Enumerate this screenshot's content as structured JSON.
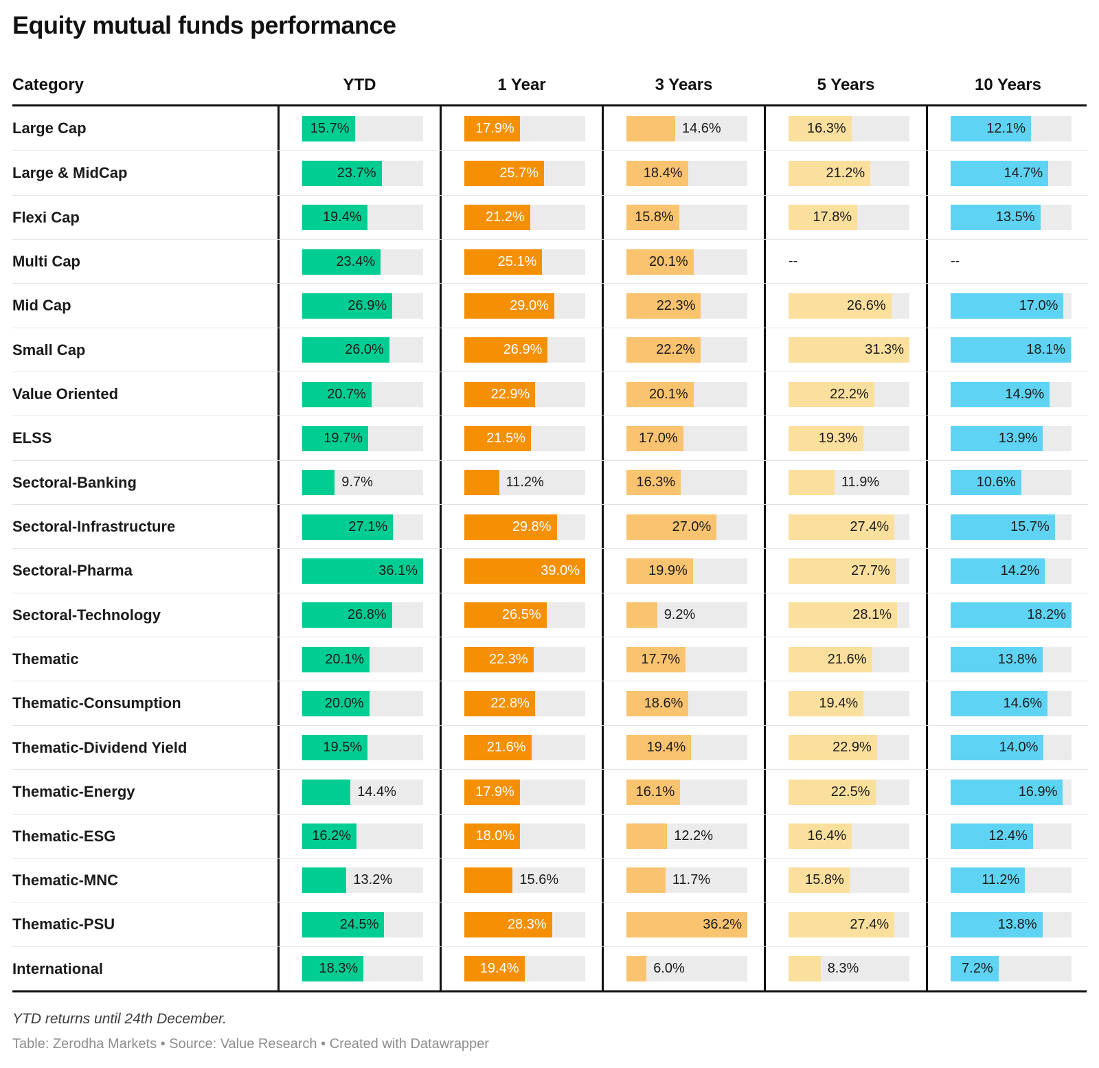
{
  "title": "Equity mutual funds performance",
  "footnote": "YTD returns until 24th December.",
  "credits": "Table: Zerodha Markets • Source: Value Research • Created with Datawrapper",
  "colors": {
    "track_gray": "#EBEBEB",
    "rule_black": "#0F0F0F",
    "row_separator": "#E3E3E3",
    "label_dark": "#1A1A1A",
    "label_light": "#FFFFFF"
  },
  "chart_data": {
    "type": "table",
    "title": "Equity mutual funds performance",
    "category_header": "Category",
    "columns": [
      {
        "key": "ytd",
        "label": "YTD",
        "color": "#00CD92",
        "inside_label_color": "#1A1A1A",
        "max": 36.1
      },
      {
        "key": "1y",
        "label": "1 Year",
        "color": "#F59005",
        "inside_label_color": "#FFFFFF",
        "max": 39.0
      },
      {
        "key": "3y",
        "label": "3 Years",
        "color": "#FAC36F",
        "inside_label_color": "#1A1A1A",
        "max": 36.2
      },
      {
        "key": "5y",
        "label": "5 Years",
        "color": "#FBDF9D",
        "inside_label_color": "#1A1A1A",
        "max": 31.3
      },
      {
        "key": "10y",
        "label": "10 Years",
        "color": "#5FD3F3",
        "inside_label_color": "#1A1A1A",
        "max": 18.2
      }
    ],
    "missing_label": "--",
    "unit": "%",
    "rows": [
      {
        "category": "Large Cap",
        "values": [
          15.7,
          17.9,
          14.6,
          16.3,
          12.1
        ]
      },
      {
        "category": "Large & MidCap",
        "values": [
          23.7,
          25.7,
          18.4,
          21.2,
          14.7
        ]
      },
      {
        "category": "Flexi Cap",
        "values": [
          19.4,
          21.2,
          15.8,
          17.8,
          13.5
        ]
      },
      {
        "category": "Multi Cap",
        "values": [
          23.4,
          25.1,
          20.1,
          null,
          null
        ]
      },
      {
        "category": "Mid Cap",
        "values": [
          26.9,
          29.0,
          22.3,
          26.6,
          17.0
        ]
      },
      {
        "category": "Small Cap",
        "values": [
          26.0,
          26.9,
          22.2,
          31.3,
          18.1
        ]
      },
      {
        "category": "Value Oriented",
        "values": [
          20.7,
          22.9,
          20.1,
          22.2,
          14.9
        ]
      },
      {
        "category": "ELSS",
        "values": [
          19.7,
          21.5,
          17.0,
          19.3,
          13.9
        ]
      },
      {
        "category": "Sectoral-Banking",
        "values": [
          9.7,
          11.2,
          16.3,
          11.9,
          10.6
        ]
      },
      {
        "category": "Sectoral-Infrastructure",
        "values": [
          27.1,
          29.8,
          27.0,
          27.4,
          15.7
        ]
      },
      {
        "category": "Sectoral-Pharma",
        "values": [
          36.1,
          39.0,
          19.9,
          27.7,
          14.2
        ]
      },
      {
        "category": "Sectoral-Technology",
        "values": [
          26.8,
          26.5,
          9.2,
          28.1,
          18.2
        ]
      },
      {
        "category": "Thematic",
        "values": [
          20.1,
          22.3,
          17.7,
          21.6,
          13.8
        ]
      },
      {
        "category": "Thematic-Consumption",
        "values": [
          20.0,
          22.8,
          18.6,
          19.4,
          14.6
        ]
      },
      {
        "category": "Thematic-Dividend Yield",
        "values": [
          19.5,
          21.6,
          19.4,
          22.9,
          14.0
        ]
      },
      {
        "category": "Thematic-Energy",
        "values": [
          14.4,
          17.9,
          16.1,
          22.5,
          16.9
        ]
      },
      {
        "category": "Thematic-ESG",
        "values": [
          16.2,
          18.0,
          12.2,
          16.4,
          12.4
        ]
      },
      {
        "category": "Thematic-MNC",
        "values": [
          13.2,
          15.6,
          11.7,
          15.8,
          11.2
        ]
      },
      {
        "category": "Thematic-PSU",
        "values": [
          24.5,
          28.3,
          36.2,
          27.4,
          13.8
        ]
      },
      {
        "category": "International",
        "values": [
          18.3,
          19.4,
          6.0,
          8.3,
          7.2
        ]
      }
    ]
  }
}
